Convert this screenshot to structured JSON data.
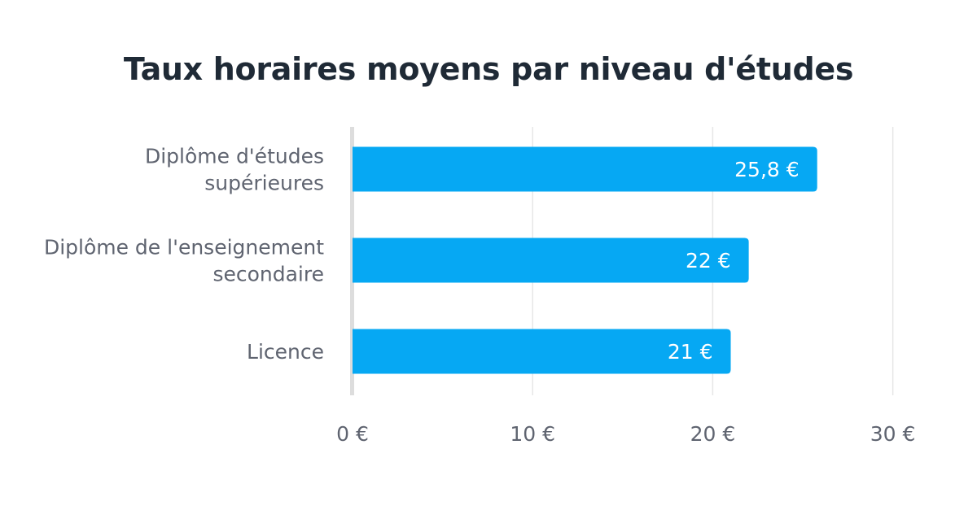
{
  "chart_data": {
    "type": "bar",
    "orientation": "horizontal",
    "title": "Taux horaires moyens par niveau d'études",
    "categories": [
      [
        "Diplôme d'études",
        "supérieures"
      ],
      [
        "Diplôme de l'enseignement",
        "secondaire"
      ],
      [
        "Licence"
      ]
    ],
    "values": [
      25.8,
      22,
      21
    ],
    "value_labels": [
      "25,8 €",
      "22 €",
      "21 €"
    ],
    "xticks": [
      0,
      10,
      20,
      30
    ],
    "xtick_labels": [
      "0 €",
      "10 €",
      "20 €",
      "30 €"
    ],
    "xlim": [
      0,
      30
    ],
    "grid": true,
    "xlabel": "",
    "ylabel": "",
    "colors": {
      "bar": "#06a8f3",
      "grid": "#e6e6e6",
      "axis": "#dddddd",
      "title": "#1f2a36",
      "label": "#5f6470"
    }
  }
}
